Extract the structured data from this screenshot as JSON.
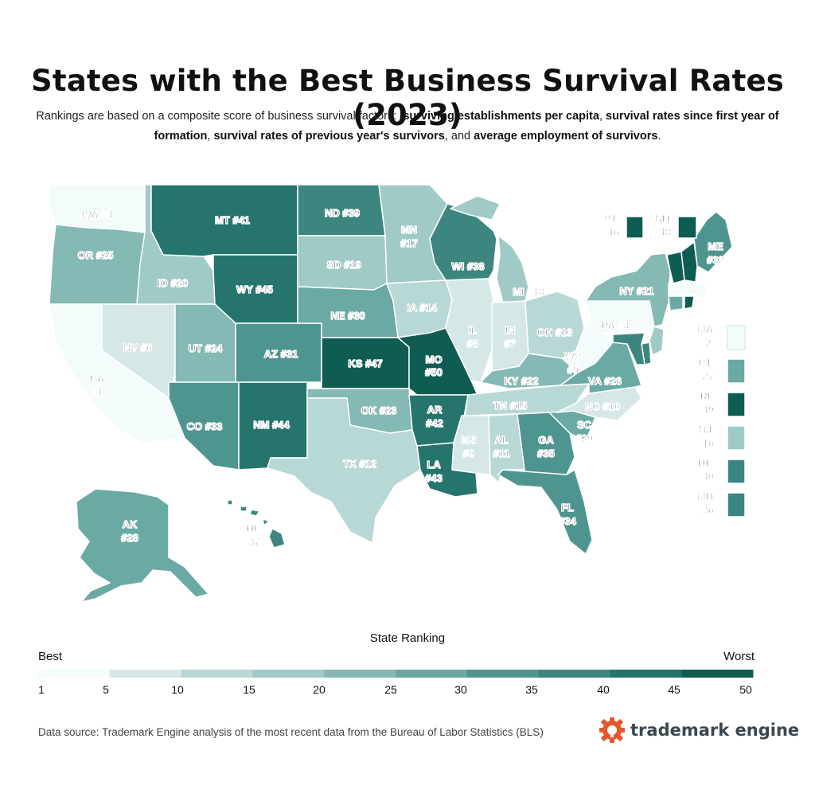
{
  "title": "States with the Best Business Survival Rates (2023)",
  "subtitle": {
    "intro": "Rankings are based on a composite score of business survival factors:",
    "factor1": "surviving establishments per capita",
    "factor2": "survival rates since first year of formation",
    "factor3": "survival rates of previous year's survivors",
    "and_text": "and",
    "factor4": "average employment of survivors"
  },
  "palette": [
    "#f3fbfb",
    "#d5e8e7",
    "#b8d8d5",
    "#9fcac6",
    "#84b9b4",
    "#6aa9a4",
    "#4f958f",
    "#3c867f",
    "#26756d",
    "#0f5c53"
  ],
  "states": [
    {
      "code": "WA",
      "rank": 4,
      "name": "WA #4"
    },
    {
      "code": "OR",
      "rank": 25,
      "name": "OR #25"
    },
    {
      "code": "CA",
      "rank": 1,
      "name": "CA",
      "rank_label": "#1"
    },
    {
      "code": "NV",
      "rank": 6,
      "name": "NV #6"
    },
    {
      "code": "ID",
      "rank": 20,
      "name": "ID #20"
    },
    {
      "code": "MT",
      "rank": 41,
      "name": "MT #41"
    },
    {
      "code": "WY",
      "rank": 45,
      "name": "WY #45"
    },
    {
      "code": "UT",
      "rank": 24,
      "name": "UT #24"
    },
    {
      "code": "AZ",
      "rank": 31,
      "name": "AZ #31"
    },
    {
      "code": "CO",
      "rank": 33,
      "name": "CO #33"
    },
    {
      "code": "NM",
      "rank": 44,
      "name": "NM #44"
    },
    {
      "code": "ND",
      "rank": 39,
      "name": "ND #39"
    },
    {
      "code": "SD",
      "rank": 19,
      "name": "SD #19"
    },
    {
      "code": "NE",
      "rank": 30,
      "name": "NE #30"
    },
    {
      "code": "KS",
      "rank": 47,
      "name": "KS #47"
    },
    {
      "code": "OK",
      "rank": 23,
      "name": "OK #23"
    },
    {
      "code": "TX",
      "rank": 12,
      "name": "TX #12"
    },
    {
      "code": "MN",
      "rank": 17,
      "name": "MN",
      "rank_label": "#17"
    },
    {
      "code": "IA",
      "rank": 14,
      "name": "IA #14"
    },
    {
      "code": "MO",
      "rank": 50,
      "name": "MO",
      "rank_label": "#50"
    },
    {
      "code": "AR",
      "rank": 42,
      "name": "AR",
      "rank_label": "#42"
    },
    {
      "code": "LA",
      "rank": 43,
      "name": "LA",
      "rank_label": "#43"
    },
    {
      "code": "WI",
      "rank": 38,
      "name": "WI #38"
    },
    {
      "code": "IL",
      "rank": 8,
      "name": "IL",
      "rank_label": "#8"
    },
    {
      "code": "MI",
      "rank": 18,
      "name": "MI #18"
    },
    {
      "code": "IN",
      "rank": 7,
      "name": "IN",
      "rank_label": "#7"
    },
    {
      "code": "OH",
      "rank": 13,
      "name": "OH #13"
    },
    {
      "code": "KY",
      "rank": 22,
      "name": "KY #22"
    },
    {
      "code": "TN",
      "rank": 15,
      "name": "TN #15"
    },
    {
      "code": "MS",
      "rank": 9,
      "name": "MS",
      "rank_label": "#9"
    },
    {
      "code": "AL",
      "rank": 11,
      "name": "AL",
      "rank_label": "#11"
    },
    {
      "code": "GA",
      "rank": 35,
      "name": "GA",
      "rank_label": "#35"
    },
    {
      "code": "FL",
      "rank": 34,
      "name": "FL",
      "rank_label": "#34"
    },
    {
      "code": "SC",
      "rank": 29,
      "name": "SC",
      "rank_label": "#29"
    },
    {
      "code": "NC",
      "rank": 10,
      "name": "NC #10"
    },
    {
      "code": "VA",
      "rank": 26,
      "name": "VA #26"
    },
    {
      "code": "WV",
      "rank": 5,
      "name": "WV",
      "rank_label": "#5"
    },
    {
      "code": "PA",
      "rank": 3,
      "name": "PA #3"
    },
    {
      "code": "NY",
      "rank": 21,
      "name": "NY #21"
    },
    {
      "code": "ME",
      "rank": 32,
      "name": "ME",
      "rank_label": "#32"
    },
    {
      "code": "AK",
      "rank": 28,
      "name": "AK",
      "rank_label": "#28"
    },
    {
      "code": "HI",
      "rank": 37,
      "name": "HI",
      "rank_label": "#37"
    }
  ],
  "small_states": [
    {
      "code": "VT",
      "rank": 46,
      "name": "VT",
      "rank_label": "#46"
    },
    {
      "code": "NH",
      "rank": 48,
      "name": "NH",
      "rank_label": "#48"
    },
    {
      "code": "MA",
      "rank": 2,
      "name": "MA",
      "rank_label": "#2"
    },
    {
      "code": "CT",
      "rank": 27,
      "name": "CT",
      "rank_label": "#27"
    },
    {
      "code": "RI",
      "rank": 49,
      "name": "RI",
      "rank_label": "#49"
    },
    {
      "code": "NJ",
      "rank": 16,
      "name": "NJ",
      "rank_label": "#16"
    },
    {
      "code": "DE",
      "rank": 40,
      "name": "DE",
      "rank_label": "#40"
    },
    {
      "code": "MD",
      "rank": 36,
      "name": "MD",
      "rank_label": "#36"
    }
  ],
  "scale": {
    "title": "State Ranking",
    "best_label": "Best",
    "worst_label": "Worst",
    "ticks": [
      "1",
      "5",
      "10",
      "15",
      "20",
      "25",
      "30",
      "35",
      "40",
      "45",
      "50"
    ]
  },
  "source": "Data source: Trademark Engine analysis of the most recent data from the Bureau of Labor Statistics (BLS)",
  "brand": {
    "name": "trademark engine",
    "color": "#e4572e"
  }
}
